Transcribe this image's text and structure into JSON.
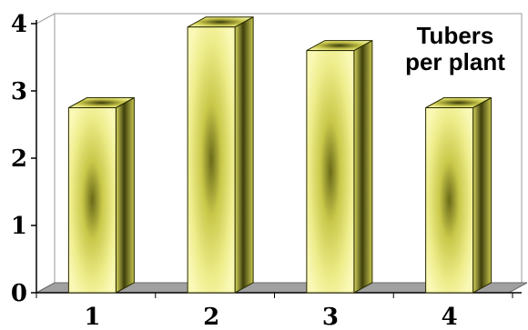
{
  "chart_data": {
    "type": "bar",
    "title_lines": [
      "Tubers",
      "per plant"
    ],
    "categories": [
      "1",
      "2",
      "3",
      "4"
    ],
    "values": [
      2.75,
      3.95,
      3.6,
      2.75
    ],
    "xlabel": "",
    "ylabel": "",
    "ylim": [
      0,
      4
    ],
    "yticks": [
      "0",
      "1",
      "2",
      "3",
      "4"
    ],
    "grid": false,
    "bar_style": "3d",
    "colors": {
      "bar_light": "#f8f7a8",
      "bar_mid": "#d9d85a",
      "bar_dark": "#4a4a10",
      "floor": "#a0a0a0",
      "axis": "#000000"
    }
  }
}
